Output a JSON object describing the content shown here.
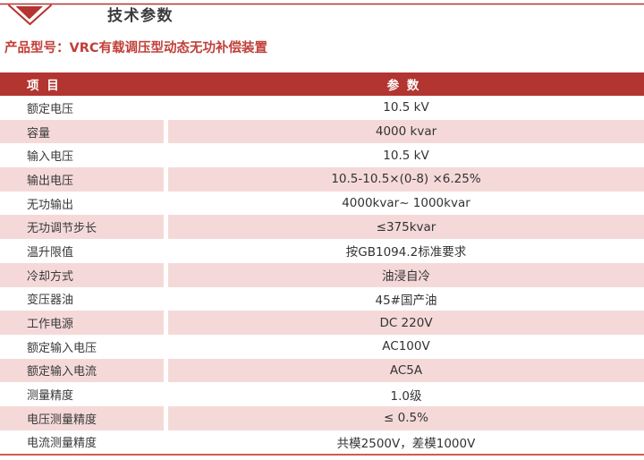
{
  "header": {
    "section_title": "技术参数",
    "product_model_label": "产品型号：",
    "product_model_value": "VRC有载调压型动态无功补偿装置"
  },
  "table": {
    "headers": [
      "项 目",
      "参 数"
    ],
    "rows": [
      {
        "item": "额定电压",
        "value": "10.5 kV"
      },
      {
        "item": "容量",
        "value": "4000 kvar"
      },
      {
        "item": "输入电压",
        "value": "10.5 kV"
      },
      {
        "item": "输出电压",
        "value": "10.5-10.5×(0-8) ×6.25%"
      },
      {
        "item": "无功输出",
        "value": "4000kvar~ 1000kvar"
      },
      {
        "item": "无功调节步长",
        "value": "≤375kvar"
      },
      {
        "item": "温升限值",
        "value": "按GB1094.2标准要求"
      },
      {
        "item": "冷却方式",
        "value": "油浸自冷"
      },
      {
        "item": "变压器油",
        "value": "45#国产油"
      },
      {
        "item": "工作电源",
        "value": "DC 220V"
      },
      {
        "item": "额定输入电压",
        "value": "AC100V"
      },
      {
        "item": "额定输入电流",
        "value": "AC5A"
      },
      {
        "item": "测量精度",
        "value": "1.0级"
      },
      {
        "item": "电压测量精度",
        "value": "≤ 0.5%"
      },
      {
        "item": "电流测量精度",
        "value": "共模2500V，差模1000V"
      }
    ]
  },
  "colors": {
    "header_bg": "#b23531",
    "row_alt_bg": "#f5d9d9",
    "accent_red": "#b5342f",
    "product_text": "#c13f38",
    "bottom_line": "#d05b49",
    "text_dark": "#3a3a3a"
  }
}
